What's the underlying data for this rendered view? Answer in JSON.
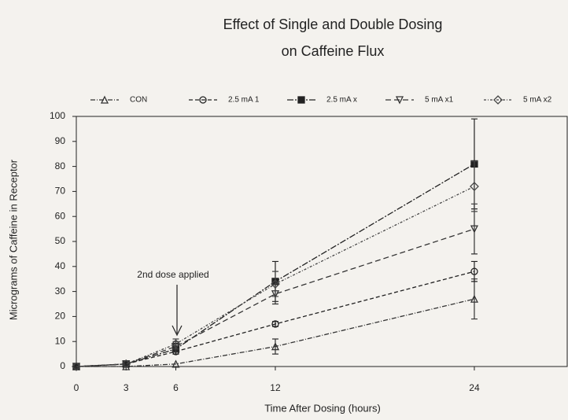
{
  "chart_data": {
    "type": "line",
    "title": "Effect of Single and Double Dosing",
    "subtitle": "on Caffeine Flux",
    "x_label": "Time After Dosing (hours)",
    "y_label": "Micrograms of Caffeine in Receptor",
    "annotation": "2nd dose applied",
    "x": [
      0,
      3,
      6,
      12,
      24
    ],
    "xlim": [
      0,
      29.6
    ],
    "xticks": [
      0,
      3,
      6,
      12,
      24
    ],
    "ylim": [
      0,
      100
    ],
    "yticks": [
      0,
      10,
      20,
      30,
      40,
      50,
      60,
      70,
      80,
      90,
      100
    ],
    "series": [
      {
        "name": "CON",
        "color": "#333333",
        "dash": "6 2 1 2",
        "marker": "triangle",
        "values": [
          0,
          0,
          1,
          8,
          27
        ],
        "errors": [
          0,
          0,
          0,
          3,
          8
        ]
      },
      {
        "name": "2.5 mA 1",
        "color": "#222222",
        "dash": "5 3",
        "marker": "circle",
        "values": [
          0,
          1,
          6,
          17,
          38
        ],
        "errors": [
          0,
          0,
          1,
          1,
          4
        ]
      },
      {
        "name": "2.5 mA x",
        "color": "#222222",
        "dash": "8 2 2 2",
        "marker": "square",
        "values": [
          0,
          1,
          7,
          34,
          81
        ],
        "errors": [
          0,
          0,
          2,
          8,
          18
        ]
      },
      {
        "name": "5 mA x1",
        "color": "#333333",
        "dash": "7 4",
        "marker": "triangle-down",
        "values": [
          0,
          1,
          8,
          29,
          55
        ],
        "errors": [
          0,
          0,
          2,
          4,
          10
        ]
      },
      {
        "name": "5 mA x2",
        "color": "#444444",
        "dash": "3 2 1 2",
        "marker": "diamond",
        "values": [
          0,
          1,
          9,
          33,
          72
        ],
        "errors": [
          0,
          0,
          2,
          5,
          10
        ]
      }
    ]
  }
}
